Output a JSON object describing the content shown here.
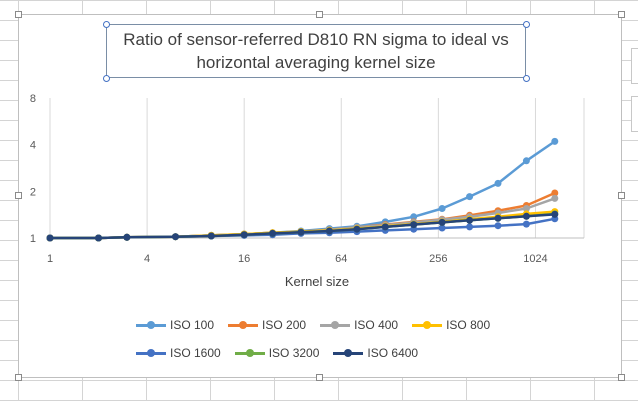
{
  "chart_data": {
    "type": "line",
    "title": "Ratio of sensor-referred D810 RN sigma to ideal vs horizontal averaging kernel size",
    "title_lines": [
      "Ratio of sensor-referred D810 RN sigma to ideal vs",
      "horizontal averaging kernel size"
    ],
    "xlabel": "Kernel size",
    "ylabel": "",
    "x_scale": "log2",
    "y_scale": "log2",
    "xlim": [
      1,
      2048
    ],
    "ylim": [
      1,
      8
    ],
    "x_ticks": [
      "1",
      "4",
      "16",
      "64",
      "256",
      "1024"
    ],
    "y_ticks": [
      "1",
      "2",
      "4",
      "8"
    ],
    "grid": "vertical",
    "legend_position": "bottom",
    "x": [
      1,
      2,
      3,
      6,
      10,
      16,
      24,
      36,
      54,
      80,
      120,
      180,
      270,
      400,
      600,
      900,
      1350
    ],
    "series": [
      {
        "name": "ISO 100",
        "color": "#5b9bd5",
        "values": [
          1.0,
          1.0,
          1.01,
          1.02,
          1.04,
          1.06,
          1.08,
          1.11,
          1.15,
          1.19,
          1.27,
          1.37,
          1.55,
          1.85,
          2.25,
          3.15,
          4.2
        ]
      },
      {
        "name": "ISO 200",
        "color": "#ed7d31",
        "values": [
          1.0,
          1.0,
          1.01,
          1.02,
          1.04,
          1.06,
          1.08,
          1.1,
          1.13,
          1.17,
          1.22,
          1.27,
          1.32,
          1.4,
          1.5,
          1.62,
          1.95
        ]
      },
      {
        "name": "ISO 400",
        "color": "#a5a5a5",
        "values": [
          1.0,
          1.0,
          1.01,
          1.02,
          1.04,
          1.06,
          1.08,
          1.1,
          1.13,
          1.17,
          1.21,
          1.26,
          1.31,
          1.37,
          1.45,
          1.55,
          1.8
        ]
      },
      {
        "name": "ISO 800",
        "color": "#ffc000",
        "values": [
          1.0,
          1.0,
          1.01,
          1.02,
          1.04,
          1.06,
          1.08,
          1.1,
          1.12,
          1.15,
          1.19,
          1.23,
          1.27,
          1.32,
          1.37,
          1.43,
          1.48
        ]
      },
      {
        "name": "ISO 1600",
        "color": "#4472c4",
        "values": [
          1.0,
          1.0,
          1.01,
          1.02,
          1.03,
          1.04,
          1.05,
          1.07,
          1.08,
          1.1,
          1.12,
          1.14,
          1.16,
          1.18,
          1.2,
          1.23,
          1.33
        ]
      },
      {
        "name": "ISO 3200",
        "color": "#70ad47",
        "values": [
          1.0,
          1.0,
          1.01,
          1.02,
          1.03,
          1.05,
          1.07,
          1.09,
          1.11,
          1.14,
          1.18,
          1.22,
          1.26,
          1.3,
          1.34,
          1.38,
          1.43
        ]
      },
      {
        "name": "ISO 6400",
        "color": "#264478",
        "values": [
          1.0,
          1.0,
          1.01,
          1.02,
          1.03,
          1.05,
          1.07,
          1.09,
          1.11,
          1.14,
          1.18,
          1.22,
          1.26,
          1.3,
          1.34,
          1.38,
          1.42
        ]
      }
    ]
  }
}
